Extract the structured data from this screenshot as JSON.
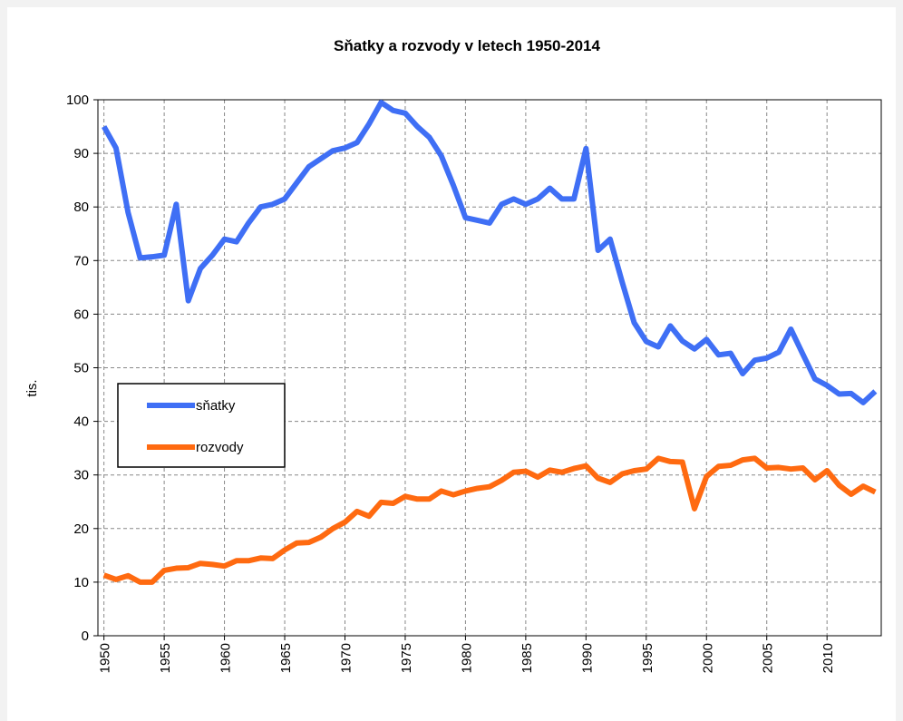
{
  "chart_data": {
    "type": "line",
    "title": "Sňatky a rozvody v letech 1950-2014",
    "y_label": "tis.",
    "x": [
      1950,
      1951,
      1952,
      1953,
      1954,
      1955,
      1956,
      1957,
      1958,
      1959,
      1960,
      1961,
      1962,
      1963,
      1964,
      1965,
      1966,
      1967,
      1968,
      1969,
      1970,
      1971,
      1972,
      1973,
      1974,
      1975,
      1976,
      1977,
      1978,
      1979,
      1980,
      1981,
      1982,
      1983,
      1984,
      1985,
      1986,
      1987,
      1988,
      1989,
      1990,
      1991,
      1992,
      1993,
      1994,
      1995,
      1996,
      1997,
      1998,
      1999,
      2000,
      2001,
      2002,
      2003,
      2004,
      2005,
      2006,
      2007,
      2008,
      2009,
      2010,
      2011,
      2012,
      2013,
      2014
    ],
    "series": [
      {
        "name": "sňatky",
        "color": "#3f6ff5",
        "values": [
          95,
          91,
          79,
          70.5,
          70.7,
          71,
          80.5,
          62.5,
          68.5,
          71,
          74,
          73.5,
          77,
          80,
          80.5,
          81.5,
          84.5,
          87.5,
          89,
          90.5,
          91,
          92,
          95.5,
          99.5,
          98,
          97.5,
          95,
          93,
          89.5,
          84,
          78,
          77.5,
          77,
          80.5,
          81.5,
          80.5,
          81.5,
          83.5,
          81.5,
          81.5,
          90.9,
          71.9,
          74,
          66,
          58.4,
          54.9,
          53.9,
          57.8,
          55,
          53.5,
          55.3,
          52.4,
          52.7,
          48.9,
          51.4,
          51.8,
          52.9,
          57.2,
          52.5,
          47.9,
          46.7,
          45.1,
          45.2,
          43.5,
          45.6
        ]
      },
      {
        "name": "rozvody",
        "color": "#ff6a10",
        "values": [
          11.3,
          10.5,
          11.2,
          10,
          10,
          12.2,
          12.6,
          12.7,
          13.5,
          13.3,
          13,
          14,
          14,
          14.5,
          14.4,
          16,
          17.3,
          17.4,
          18.4,
          20,
          21.2,
          23.2,
          22.3,
          24.9,
          24.7,
          26,
          25.5,
          25.5,
          27,
          26.3,
          27,
          27.5,
          27.8,
          29,
          30.5,
          30.7,
          29.6,
          30.9,
          30.5,
          31.2,
          31.7,
          29.4,
          28.6,
          30.2,
          30.8,
          31.1,
          33.1,
          32.5,
          32.4,
          23.7,
          29.7,
          31.6,
          31.8,
          32.8,
          33.1,
          31.3,
          31.4,
          31.1,
          31.3,
          29.1,
          30.8,
          28.1,
          26.4,
          27.9,
          26.8
        ]
      }
    ],
    "xlim": [
      1949.5,
      2014.5
    ],
    "xticks": [
      1950,
      1955,
      1960,
      1965,
      1970,
      1975,
      1980,
      1985,
      1990,
      1995,
      2000,
      2005,
      2010
    ],
    "ylim": [
      0,
      100
    ],
    "yticks": [
      0,
      10,
      20,
      30,
      40,
      50,
      60,
      70,
      80,
      90,
      100
    ],
    "grid": true,
    "legend": "left"
  }
}
